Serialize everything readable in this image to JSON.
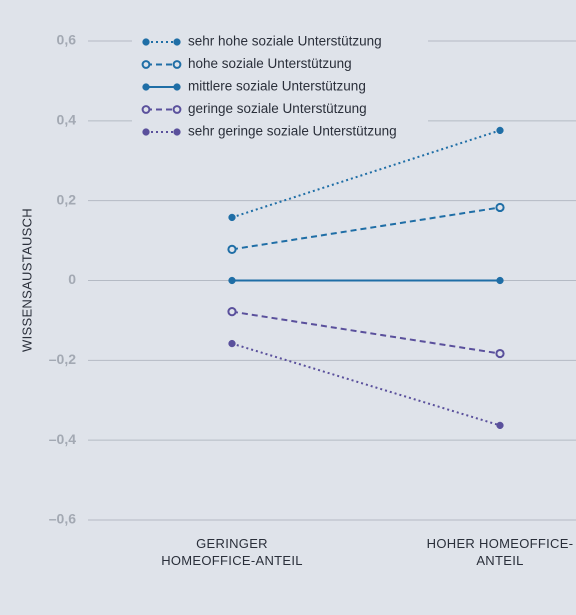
{
  "chart_data": {
    "type": "line",
    "y_label": "WISSENSAUSTAUSCH",
    "categories": [
      "GERINGER HOMEOFFICE-ANTEIL",
      "HOHER HOMEOFFICE-ANTEIL"
    ],
    "ylim": [
      -0.6,
      0.6
    ],
    "yticks": [
      {
        "value": -0.6,
        "label": "–0,6"
      },
      {
        "value": -0.4,
        "label": "–0,4"
      },
      {
        "value": -0.2,
        "label": "–0,2"
      },
      0,
      {
        "value": 0.2,
        "label": "0,2"
      },
      {
        "value": 0.4,
        "label": "0,4"
      },
      {
        "value": 0.6,
        "label": "0,6"
      }
    ],
    "grid": true,
    "series": [
      {
        "name": "sehr hohe soziale Unterstützung",
        "color": "#1f6ea6",
        "line_style": "dotted",
        "marker": "filled",
        "values": [
          0.158,
          0.376
        ]
      },
      {
        "name": "hohe soziale Unterstützung",
        "color": "#1f6ea6",
        "line_style": "dashed",
        "marker": "hollow",
        "values": [
          0.078,
          0.183
        ]
      },
      {
        "name": "mittlere soziale Unterstützung",
        "color": "#1f6ea6",
        "line_style": "solid",
        "marker": "filled",
        "values": [
          0,
          0
        ]
      },
      {
        "name": "geringe soziale Unterstützung",
        "color": "#5a509c",
        "line_style": "dashed",
        "marker": "hollow",
        "values": [
          -0.078,
          -0.183
        ]
      },
      {
        "name": "sehr geringe soziale Unterstützung",
        "color": "#5a509c",
        "line_style": "dotted",
        "marker": "filled",
        "values": [
          -0.158,
          -0.363
        ]
      }
    ]
  }
}
